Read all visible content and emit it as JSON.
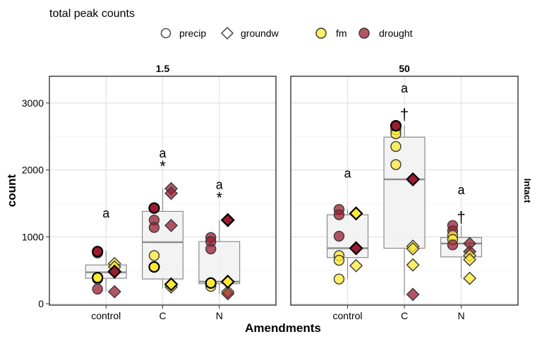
{
  "chart_data": {
    "type": "scatter",
    "title": "total peak counts",
    "xlabel": "Amendments",
    "ylabel": "count",
    "strip_label": "Intact",
    "ylim": [
      -20,
      3400
    ],
    "yticks": [
      "0",
      "1000",
      "2000",
      "3000"
    ],
    "ytick_values": [
      0,
      1000,
      2000,
      3000
    ],
    "categories": [
      "control",
      "C",
      "N"
    ],
    "legend": {
      "position": "top",
      "shape_items": [
        {
          "label": "precip",
          "shape": "circle"
        },
        {
          "label": "groundw",
          "shape": "diamond"
        }
      ],
      "color_items": [
        {
          "label": "fm",
          "color": "#ffe835"
        },
        {
          "label": "drought",
          "color": "#9b1c30"
        }
      ]
    },
    "colors": {
      "fm": "#ffe835",
      "drought": "#9b1c30",
      "box_fill": "#f2f2f2",
      "box_line": "#8c8c8c"
    },
    "panels": [
      {
        "label": "1.5",
        "boxes": [
          {
            "category": "control",
            "q1": 380,
            "median": 470,
            "q3": 580,
            "wlow": 180,
            "whigh": 790
          },
          {
            "category": "C",
            "q1": 370,
            "median": 920,
            "q3": 1380,
            "wlow": 230,
            "whigh": 1720
          },
          {
            "category": "N",
            "q1": 300,
            "median": 330,
            "q3": 930,
            "wlow": 150,
            "whigh": 1250
          }
        ],
        "annotations": [
          {
            "category": "control",
            "text": "a",
            "y": 1350
          },
          {
            "category": "C",
            "text": "a",
            "y": 2250
          },
          {
            "category": "C",
            "text": "*",
            "y": 2100
          },
          {
            "category": "N",
            "text": "a",
            "y": 1780
          },
          {
            "category": "N",
            "text": "*",
            "y": 1630
          }
        ],
        "points": [
          {
            "category": "control",
            "shape": "circle",
            "group": "drought",
            "offset": -0.15,
            "y": 780,
            "highlight": true
          },
          {
            "category": "control",
            "shape": "circle",
            "group": "drought",
            "offset": -0.15,
            "y": 760,
            "highlight": false
          },
          {
            "category": "control",
            "shape": "circle",
            "group": "fm",
            "offset": -0.15,
            "y": 390,
            "highlight": true
          },
          {
            "category": "control",
            "shape": "circle",
            "group": "fm",
            "offset": -0.15,
            "y": 370,
            "highlight": false
          },
          {
            "category": "control",
            "shape": "circle",
            "group": "drought",
            "offset": -0.15,
            "y": 220,
            "highlight": false
          },
          {
            "category": "control",
            "shape": "diamond",
            "group": "fm",
            "offset": 0.15,
            "y": 600,
            "highlight": false
          },
          {
            "category": "control",
            "shape": "diamond",
            "group": "fm",
            "offset": 0.15,
            "y": 550,
            "highlight": false
          },
          {
            "category": "control",
            "shape": "diamond",
            "group": "drought",
            "offset": 0.15,
            "y": 480,
            "highlight": true
          },
          {
            "category": "control",
            "shape": "diamond",
            "group": "drought",
            "offset": 0.15,
            "y": 180,
            "highlight": false
          },
          {
            "category": "C",
            "shape": "circle",
            "group": "drought",
            "offset": -0.15,
            "y": 1430,
            "highlight": true
          },
          {
            "category": "C",
            "shape": "circle",
            "group": "drought",
            "offset": -0.15,
            "y": 1250,
            "highlight": false
          },
          {
            "category": "C",
            "shape": "circle",
            "group": "drought",
            "offset": -0.15,
            "y": 1140,
            "highlight": false
          },
          {
            "category": "C",
            "shape": "circle",
            "group": "fm",
            "offset": -0.15,
            "y": 720,
            "highlight": false
          },
          {
            "category": "C",
            "shape": "circle",
            "group": "fm",
            "offset": -0.15,
            "y": 550,
            "highlight": true
          },
          {
            "category": "C",
            "shape": "diamond",
            "group": "drought",
            "offset": 0.15,
            "y": 1720,
            "highlight": false
          },
          {
            "category": "C",
            "shape": "diamond",
            "group": "drought",
            "offset": 0.15,
            "y": 1650,
            "highlight": false
          },
          {
            "category": "C",
            "shape": "diamond",
            "group": "drought",
            "offset": 0.15,
            "y": 1170,
            "highlight": false
          },
          {
            "category": "C",
            "shape": "diamond",
            "group": "fm",
            "offset": 0.15,
            "y": 290,
            "highlight": true
          },
          {
            "category": "C",
            "shape": "diamond",
            "group": "fm",
            "offset": 0.15,
            "y": 250,
            "highlight": false
          },
          {
            "category": "N",
            "shape": "circle",
            "group": "drought",
            "offset": -0.15,
            "y": 990,
            "highlight": false
          },
          {
            "category": "N",
            "shape": "circle",
            "group": "drought",
            "offset": -0.15,
            "y": 930,
            "highlight": false
          },
          {
            "category": "N",
            "shape": "circle",
            "group": "drought",
            "offset": -0.15,
            "y": 820,
            "highlight": false
          },
          {
            "category": "N",
            "shape": "circle",
            "group": "fm",
            "offset": -0.15,
            "y": 310,
            "highlight": true
          },
          {
            "category": "N",
            "shape": "circle",
            "group": "fm",
            "offset": -0.15,
            "y": 260,
            "highlight": false
          },
          {
            "category": "N",
            "shape": "diamond",
            "group": "drought",
            "offset": 0.15,
            "y": 1250,
            "highlight": true
          },
          {
            "category": "N",
            "shape": "diamond",
            "group": "fm",
            "offset": 0.15,
            "y": 330,
            "highlight": true
          },
          {
            "category": "N",
            "shape": "diamond",
            "group": "fm",
            "offset": 0.15,
            "y": 180,
            "highlight": false
          },
          {
            "category": "N",
            "shape": "diamond",
            "group": "drought",
            "offset": 0.15,
            "y": 150,
            "highlight": false
          }
        ]
      },
      {
        "label": "50",
        "boxes": [
          {
            "category": "control",
            "q1": 690,
            "median": 830,
            "q3": 1330,
            "wlow": 370,
            "whigh": 1410
          },
          {
            "category": "C",
            "q1": 830,
            "median": 1860,
            "q3": 2490,
            "wlow": 130,
            "whigh": 2660
          },
          {
            "category": "N",
            "q1": 700,
            "median": 900,
            "q3": 990,
            "wlow": 380,
            "whigh": 1170
          }
        ],
        "annotations": [
          {
            "category": "control",
            "text": "a",
            "y": 1950
          },
          {
            "category": "C",
            "text": "a",
            "y": 3220
          },
          {
            "category": "C",
            "text": "†",
            "y": 2880
          },
          {
            "category": "N",
            "text": "a",
            "y": 1700
          },
          {
            "category": "N",
            "text": "†",
            "y": 1340
          }
        ],
        "points": [
          {
            "category": "control",
            "shape": "circle",
            "group": "drought",
            "offset": -0.15,
            "y": 1410,
            "highlight": false
          },
          {
            "category": "control",
            "shape": "circle",
            "group": "drought",
            "offset": -0.15,
            "y": 1330,
            "highlight": false
          },
          {
            "category": "control",
            "shape": "circle",
            "group": "drought",
            "offset": -0.15,
            "y": 1010,
            "highlight": false
          },
          {
            "category": "control",
            "shape": "circle",
            "group": "fm",
            "offset": -0.15,
            "y": 720,
            "highlight": false
          },
          {
            "category": "control",
            "shape": "circle",
            "group": "fm",
            "offset": -0.15,
            "y": 650,
            "highlight": false
          },
          {
            "category": "control",
            "shape": "circle",
            "group": "fm",
            "offset": -0.15,
            "y": 370,
            "highlight": false
          },
          {
            "category": "control",
            "shape": "diamond",
            "group": "fm",
            "offset": 0.15,
            "y": 1350,
            "highlight": true
          },
          {
            "category": "control",
            "shape": "diamond",
            "group": "drought",
            "offset": 0.15,
            "y": 830,
            "highlight": true
          },
          {
            "category": "control",
            "shape": "diamond",
            "group": "fm",
            "offset": 0.15,
            "y": 570,
            "highlight": false
          },
          {
            "category": "C",
            "shape": "circle",
            "group": "drought",
            "offset": -0.15,
            "y": 2660,
            "highlight": true
          },
          {
            "category": "C",
            "shape": "circle",
            "group": "fm",
            "offset": -0.15,
            "y": 2600,
            "highlight": false
          },
          {
            "category": "C",
            "shape": "circle",
            "group": "fm",
            "offset": -0.15,
            "y": 2540,
            "highlight": false
          },
          {
            "category": "C",
            "shape": "circle",
            "group": "fm",
            "offset": -0.15,
            "y": 2350,
            "highlight": false
          },
          {
            "category": "C",
            "shape": "circle",
            "group": "fm",
            "offset": -0.15,
            "y": 2080,
            "highlight": false
          },
          {
            "category": "C",
            "shape": "diamond",
            "group": "drought",
            "offset": 0.15,
            "y": 1860,
            "highlight": true
          },
          {
            "category": "C",
            "shape": "diamond",
            "group": "fm",
            "offset": 0.15,
            "y": 860,
            "highlight": false
          },
          {
            "category": "C",
            "shape": "diamond",
            "group": "fm",
            "offset": 0.15,
            "y": 820,
            "highlight": false
          },
          {
            "category": "C",
            "shape": "diamond",
            "group": "fm",
            "offset": 0.15,
            "y": 580,
            "highlight": false
          },
          {
            "category": "C",
            "shape": "diamond",
            "group": "drought",
            "offset": 0.15,
            "y": 140,
            "highlight": false
          },
          {
            "category": "N",
            "shape": "circle",
            "group": "drought",
            "offset": -0.15,
            "y": 1170,
            "highlight": false
          },
          {
            "category": "N",
            "shape": "circle",
            "group": "drought",
            "offset": -0.15,
            "y": 1090,
            "highlight": false
          },
          {
            "category": "N",
            "shape": "circle",
            "group": "fm",
            "offset": -0.15,
            "y": 1020,
            "highlight": false
          },
          {
            "category": "N",
            "shape": "circle",
            "group": "fm",
            "offset": -0.15,
            "y": 960,
            "highlight": false
          },
          {
            "category": "N",
            "shape": "circle",
            "group": "drought",
            "offset": -0.15,
            "y": 880,
            "highlight": false
          },
          {
            "category": "N",
            "shape": "diamond",
            "group": "drought",
            "offset": 0.15,
            "y": 900,
            "highlight": false
          },
          {
            "category": "N",
            "shape": "diamond",
            "group": "drought",
            "offset": 0.15,
            "y": 780,
            "highlight": false
          },
          {
            "category": "N",
            "shape": "diamond",
            "group": "fm",
            "offset": 0.15,
            "y": 720,
            "highlight": false
          },
          {
            "category": "N",
            "shape": "diamond",
            "group": "fm",
            "offset": 0.15,
            "y": 660,
            "highlight": false
          },
          {
            "category": "N",
            "shape": "diamond",
            "group": "fm",
            "offset": 0.15,
            "y": 380,
            "highlight": false
          }
        ]
      }
    ]
  }
}
